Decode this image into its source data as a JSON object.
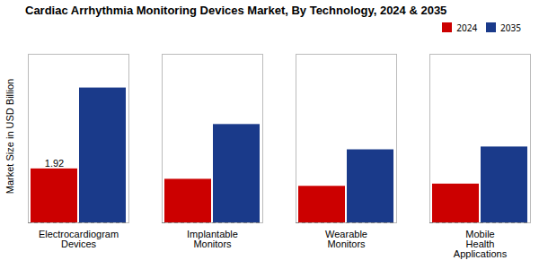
{
  "chart_data": {
    "type": "bar",
    "title": "Cardiac Arrhythmia Monitoring Devices Market, By Technology, 2024 & 2035",
    "ylabel": "Market Size in USD Billion",
    "categories": [
      "Electrocardiogram\nDevices",
      "Implantable\nMonitors",
      "Wearable\nMonitors",
      "Mobile\nHealth\nApplications"
    ],
    "series": [
      {
        "name": "2024",
        "color": "#cc0000",
        "values": [
          1.92,
          1.55,
          1.3,
          1.38
        ]
      },
      {
        "name": "2035",
        "color": "#1a3a8a",
        "values": [
          4.8,
          3.5,
          2.6,
          2.7
        ]
      }
    ],
    "ylim": [
      0,
      6.0
    ],
    "yticks": [],
    "tick_labels": "x",
    "grid": false,
    "legend": "upper right",
    "annotations": [
      {
        "text": "1.92",
        "category": "Electrocardiogram\nDevices",
        "series": "2024",
        "value": 1.92
      }
    ]
  }
}
